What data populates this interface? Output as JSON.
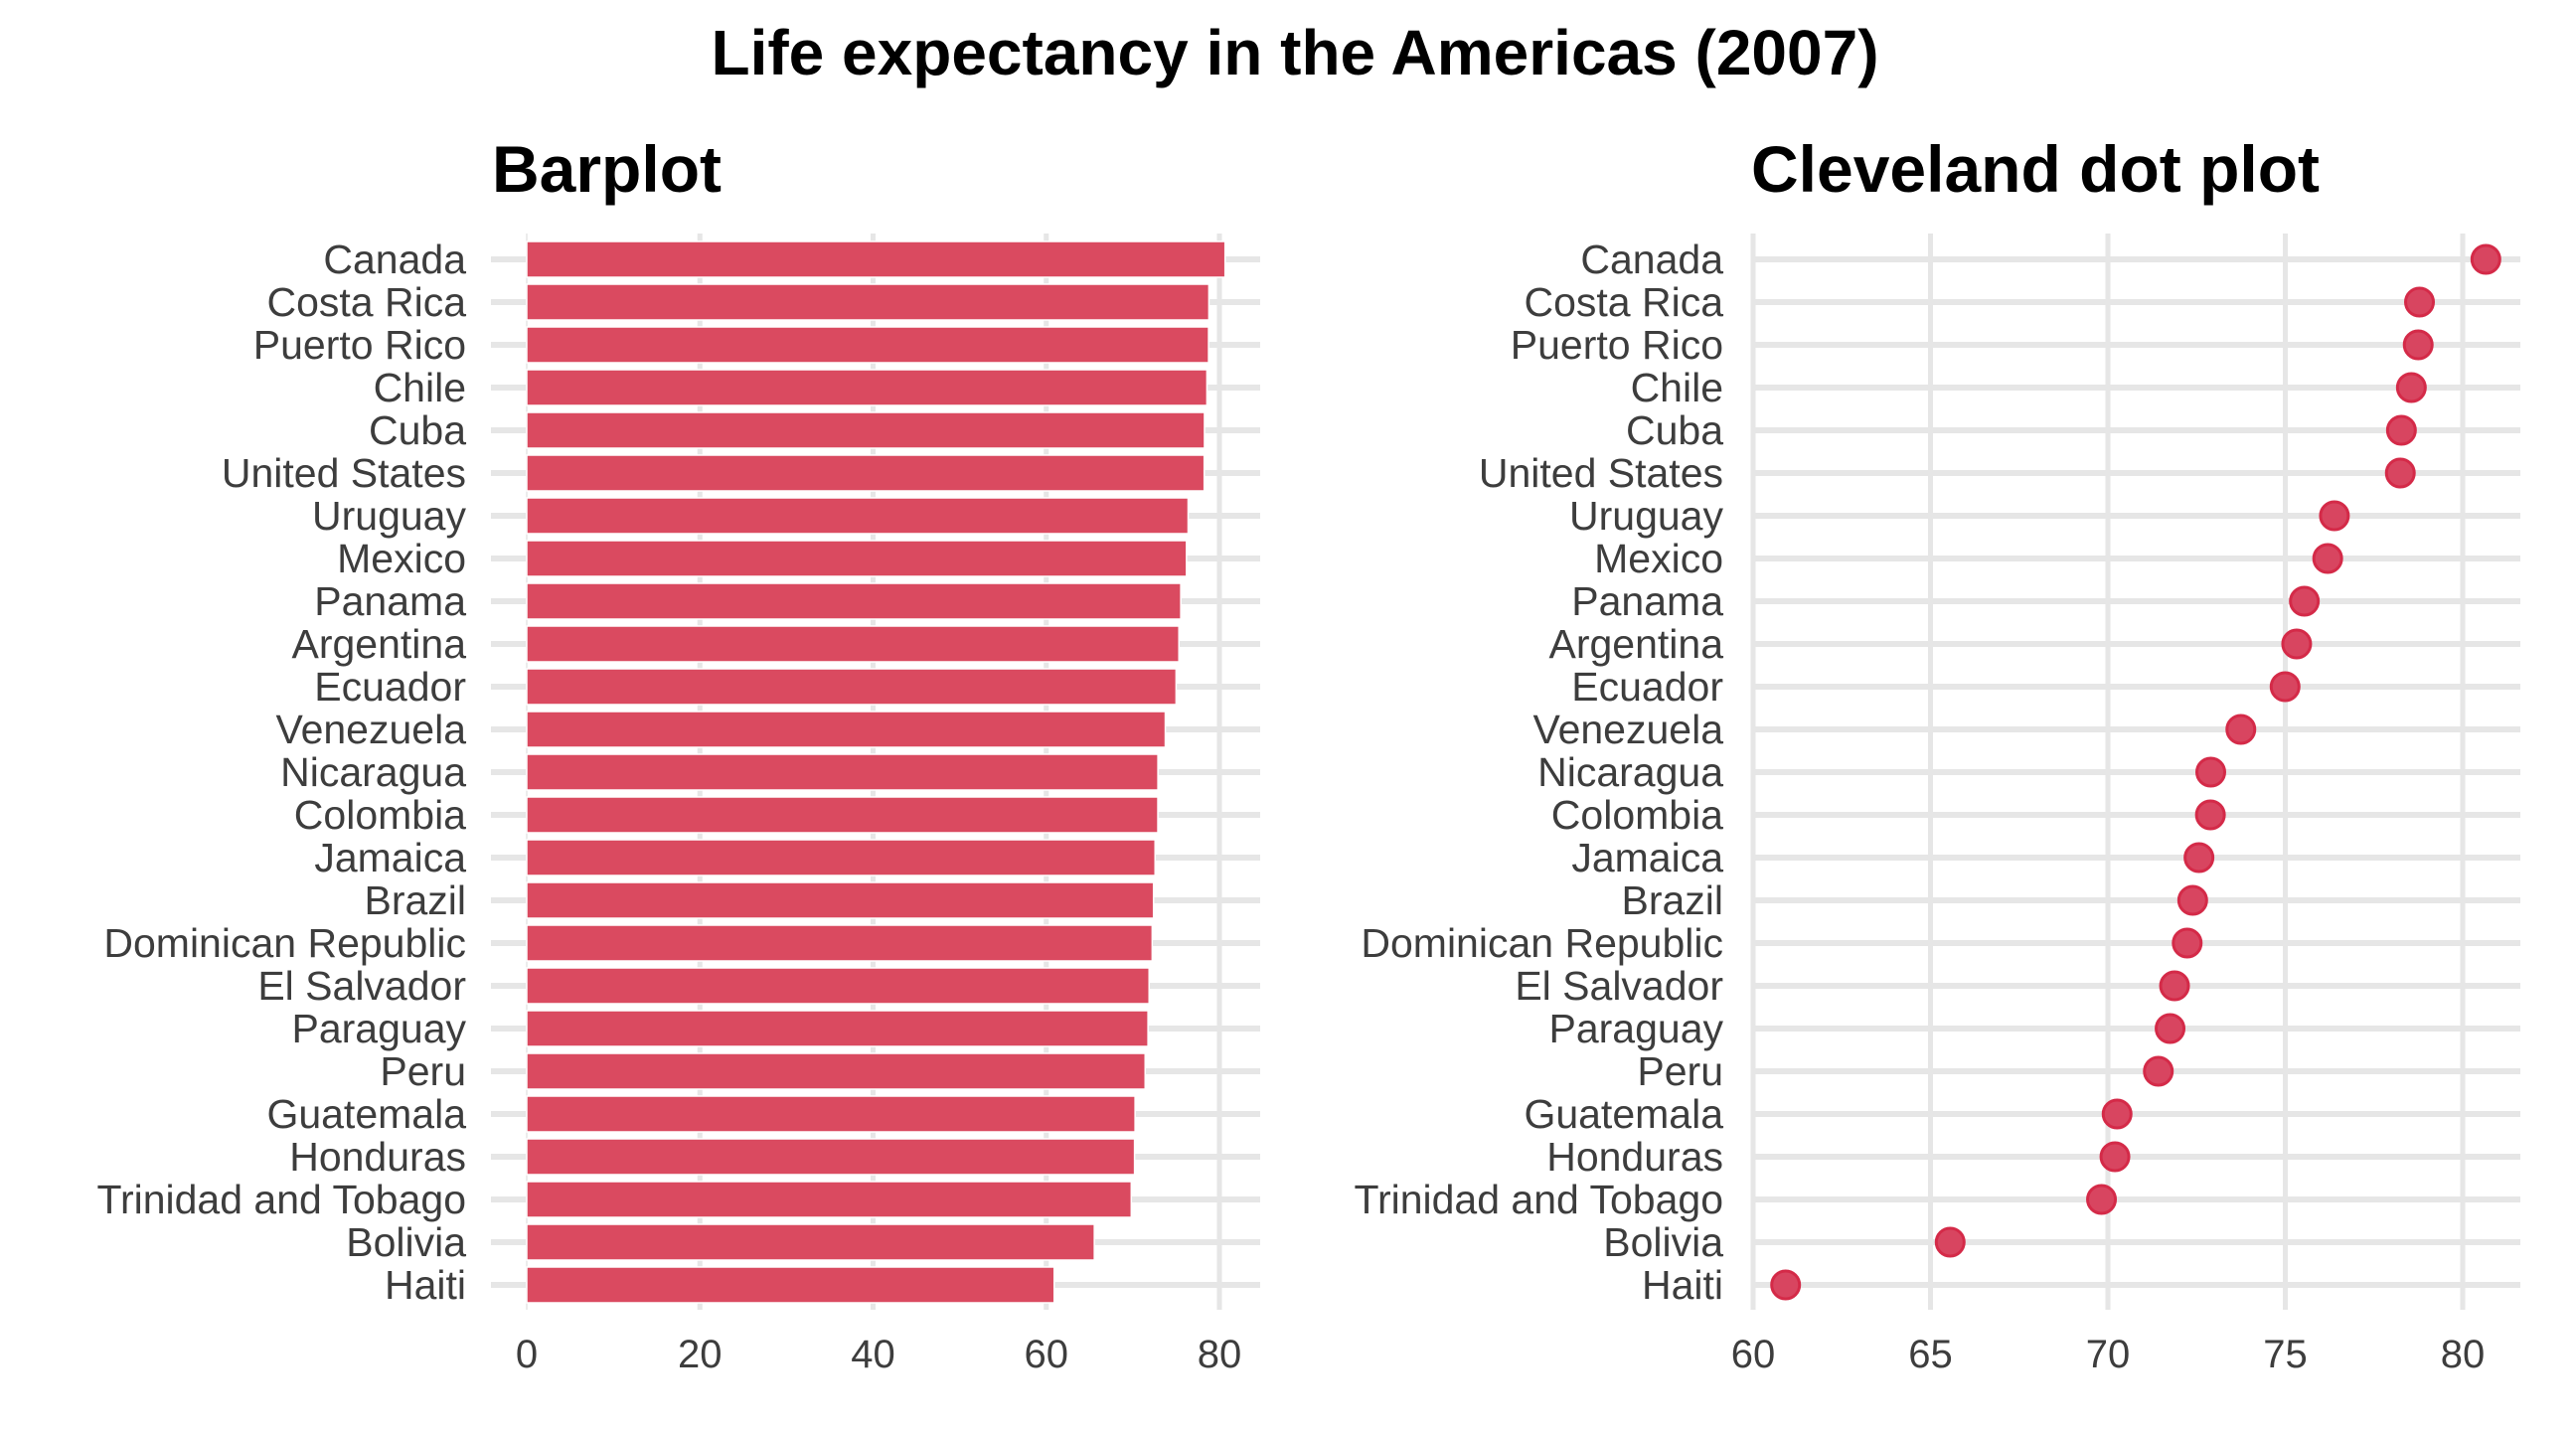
{
  "title": "Life expectancy in the Americas (2007)",
  "colors": {
    "bar_fill": "#DA4A60",
    "bar_stroke": "#FFFFFF",
    "dot_fill": "#D84560",
    "dot_stroke": "#D42A48",
    "grid": "#E6E6E6",
    "text": "#3D3D3D"
  },
  "chart_data": [
    {
      "type": "bar",
      "orientation": "horizontal",
      "title": "Barplot",
      "xlabel": "",
      "ylabel": "",
      "xlim": [
        0,
        85
      ],
      "x_ticks": [
        0,
        20,
        40,
        60,
        80
      ],
      "grid": true,
      "categories": [
        "Canada",
        "Costa Rica",
        "Puerto Rico",
        "Chile",
        "Cuba",
        "United States",
        "Uruguay",
        "Mexico",
        "Panama",
        "Argentina",
        "Ecuador",
        "Venezuela",
        "Nicaragua",
        "Colombia",
        "Jamaica",
        "Brazil",
        "Dominican Republic",
        "El Salvador",
        "Paraguay",
        "Peru",
        "Guatemala",
        "Honduras",
        "Trinidad and Tobago",
        "Bolivia",
        "Haiti"
      ],
      "values": [
        80.653,
        78.782,
        78.746,
        78.553,
        78.273,
        78.242,
        76.384,
        76.195,
        75.537,
        75.32,
        74.994,
        73.747,
        72.899,
        72.889,
        72.567,
        72.39,
        72.235,
        71.878,
        71.752,
        71.421,
        70.259,
        70.198,
        69.819,
        65.554,
        60.916
      ]
    },
    {
      "type": "scatter",
      "subtype": "cleveland-dot",
      "title": "Cleveland dot plot",
      "xlabel": "",
      "ylabel": "",
      "xlim": [
        60,
        81.6
      ],
      "x_ticks": [
        60,
        65,
        70,
        75,
        80
      ],
      "grid": true,
      "categories": [
        "Canada",
        "Costa Rica",
        "Puerto Rico",
        "Chile",
        "Cuba",
        "United States",
        "Uruguay",
        "Mexico",
        "Panama",
        "Argentina",
        "Ecuador",
        "Venezuela",
        "Nicaragua",
        "Colombia",
        "Jamaica",
        "Brazil",
        "Dominican Republic",
        "El Salvador",
        "Paraguay",
        "Peru",
        "Guatemala",
        "Honduras",
        "Trinidad and Tobago",
        "Bolivia",
        "Haiti"
      ],
      "values": [
        80.653,
        78.782,
        78.746,
        78.553,
        78.273,
        78.242,
        76.384,
        76.195,
        75.537,
        75.32,
        74.994,
        73.747,
        72.899,
        72.889,
        72.567,
        72.39,
        72.235,
        71.878,
        71.752,
        71.421,
        70.259,
        70.198,
        69.819,
        65.554,
        60.916
      ]
    }
  ]
}
